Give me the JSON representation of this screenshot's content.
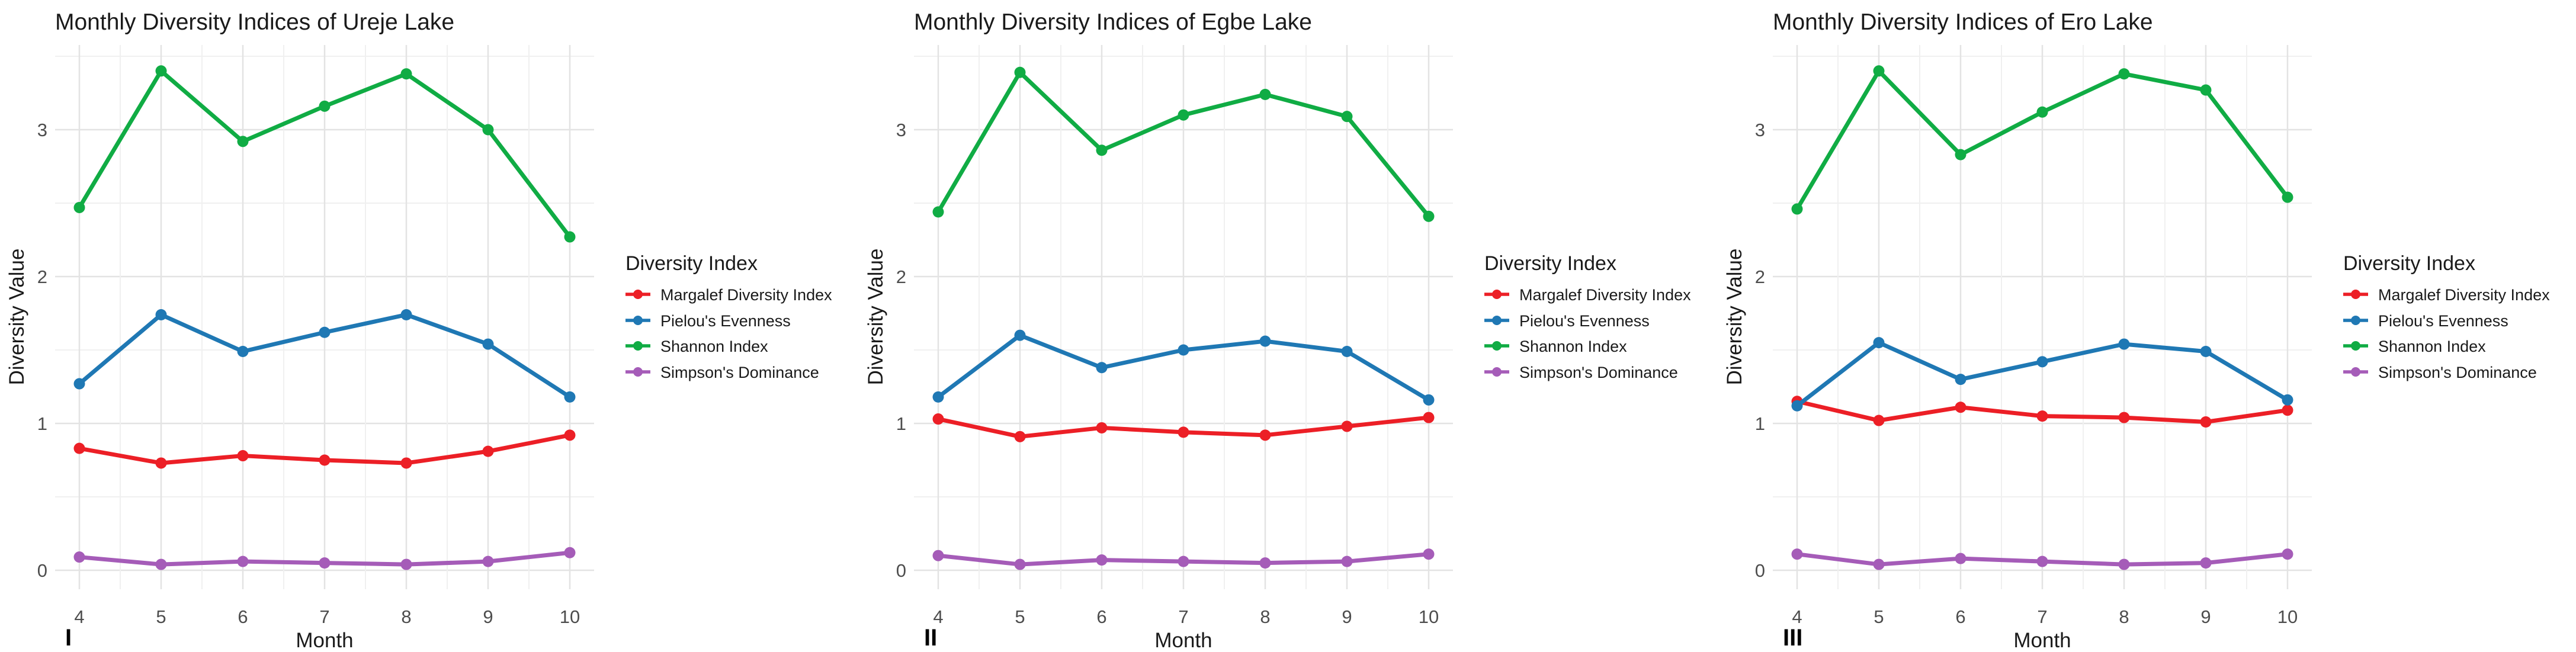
{
  "figure": {
    "background": "#ffffff",
    "legend_title": "Diversity Index",
    "xlabel": "Month",
    "ylabel": "Diversity Value",
    "colors": {
      "margalef": "#EC1F26",
      "pielou": "#1F78B4",
      "shannon": "#10AC44",
      "simpson": "#A55CB8",
      "grid_major": "#E3E3E3",
      "grid_minor": "#F0F0F0",
      "tick_text": "#4D4D4D",
      "title_text": "#1A1A1A"
    }
  },
  "chart_data": [
    {
      "type": "line",
      "title": "Monthly Diversity Indices of Ureje Lake",
      "panel_label": "I",
      "xlabel": "Month",
      "ylabel": "Diversity Value",
      "legend_title": "Diversity Index",
      "legend_position": "right",
      "grid": "on",
      "x": [
        4,
        5,
        6,
        7,
        8,
        9,
        10
      ],
      "x_tick_labels": [
        "4",
        "5",
        "6",
        "7",
        "8",
        "9",
        "10"
      ],
      "y_ticks": [
        0,
        1,
        2,
        3
      ],
      "ylim": [
        -0.15,
        3.6
      ],
      "series": [
        {
          "name": "Margalef Diversity Index",
          "color_key": "margalef",
          "values": [
            0.83,
            0.73,
            0.78,
            0.75,
            0.73,
            0.81,
            0.92
          ]
        },
        {
          "name": "Pielou's Evenness",
          "color_key": "pielou",
          "values": [
            1.27,
            1.74,
            1.49,
            1.62,
            1.74,
            1.54,
            1.18
          ]
        },
        {
          "name": "Shannon Index",
          "color_key": "shannon",
          "values": [
            2.47,
            3.4,
            2.92,
            3.16,
            3.38,
            3.0,
            2.27
          ]
        },
        {
          "name": "Simpson's Dominance",
          "color_key": "simpson",
          "values": [
            0.09,
            0.04,
            0.06,
            0.05,
            0.04,
            0.06,
            0.12
          ]
        }
      ]
    },
    {
      "type": "line",
      "title": "Monthly Diversity Indices of Egbe Lake",
      "panel_label": "II",
      "xlabel": "Month",
      "ylabel": "Diversity Value",
      "legend_title": "Diversity Index",
      "legend_position": "right",
      "grid": "on",
      "x": [
        4,
        5,
        6,
        7,
        8,
        9,
        10
      ],
      "x_tick_labels": [
        "4",
        "5",
        "6",
        "7",
        "8",
        "9",
        "10"
      ],
      "y_ticks": [
        0,
        1,
        2,
        3
      ],
      "ylim": [
        -0.15,
        3.6
      ],
      "series": [
        {
          "name": "Margalef Diversity Index",
          "color_key": "margalef",
          "values": [
            1.03,
            0.91,
            0.97,
            0.94,
            0.92,
            0.98,
            1.04
          ]
        },
        {
          "name": "Pielou's Evenness",
          "color_key": "pielou",
          "values": [
            1.18,
            1.6,
            1.38,
            1.5,
            1.56,
            1.49,
            1.16
          ]
        },
        {
          "name": "Shannon Index",
          "color_key": "shannon",
          "values": [
            2.44,
            3.39,
            2.86,
            3.1,
            3.24,
            3.09,
            2.41
          ]
        },
        {
          "name": "Simpson's Dominance",
          "color_key": "simpson",
          "values": [
            0.1,
            0.04,
            0.07,
            0.06,
            0.05,
            0.06,
            0.11
          ]
        }
      ]
    },
    {
      "type": "line",
      "title": "Monthly Diversity Indices of Ero Lake",
      "panel_label": "III",
      "xlabel": "Month",
      "ylabel": "Diversity Value",
      "legend_title": "Diversity Index",
      "legend_position": "right",
      "grid": "on",
      "x": [
        4,
        5,
        6,
        7,
        8,
        9,
        10
      ],
      "x_tick_labels": [
        "4",
        "5",
        "6",
        "7",
        "8",
        "9",
        "10"
      ],
      "y_ticks": [
        0,
        1,
        2,
        3
      ],
      "ylim": [
        -0.15,
        3.6
      ],
      "series": [
        {
          "name": "Margalef Diversity Index",
          "color_key": "margalef",
          "values": [
            1.15,
            1.02,
            1.11,
            1.05,
            1.04,
            1.01,
            1.09
          ]
        },
        {
          "name": "Pielou's Evenness",
          "color_key": "pielou",
          "values": [
            1.12,
            1.55,
            1.3,
            1.42,
            1.54,
            1.49,
            1.16
          ]
        },
        {
          "name": "Shannon Index",
          "color_key": "shannon",
          "values": [
            2.46,
            3.4,
            2.83,
            3.12,
            3.38,
            3.27,
            2.54
          ]
        },
        {
          "name": "Simpson's Dominance",
          "color_key": "simpson",
          "values": [
            0.11,
            0.04,
            0.08,
            0.06,
            0.04,
            0.05,
            0.11
          ]
        }
      ]
    }
  ]
}
